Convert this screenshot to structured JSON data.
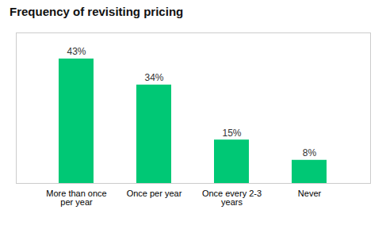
{
  "chart_data": {
    "type": "bar",
    "title": "Frequency of revisiting pricing",
    "categories": [
      "More than once\nper year",
      "Once per year",
      "Once every 2-3\nyears",
      "Never"
    ],
    "values": [
      43,
      34,
      15,
      8
    ],
    "value_labels": [
      "43%",
      "34%",
      "15%",
      "8%"
    ],
    "data_labels": true,
    "color": "#00c875",
    "ylim": [
      0,
      52
    ],
    "yticks": [],
    "tick_labels": "x",
    "grid": false
  }
}
